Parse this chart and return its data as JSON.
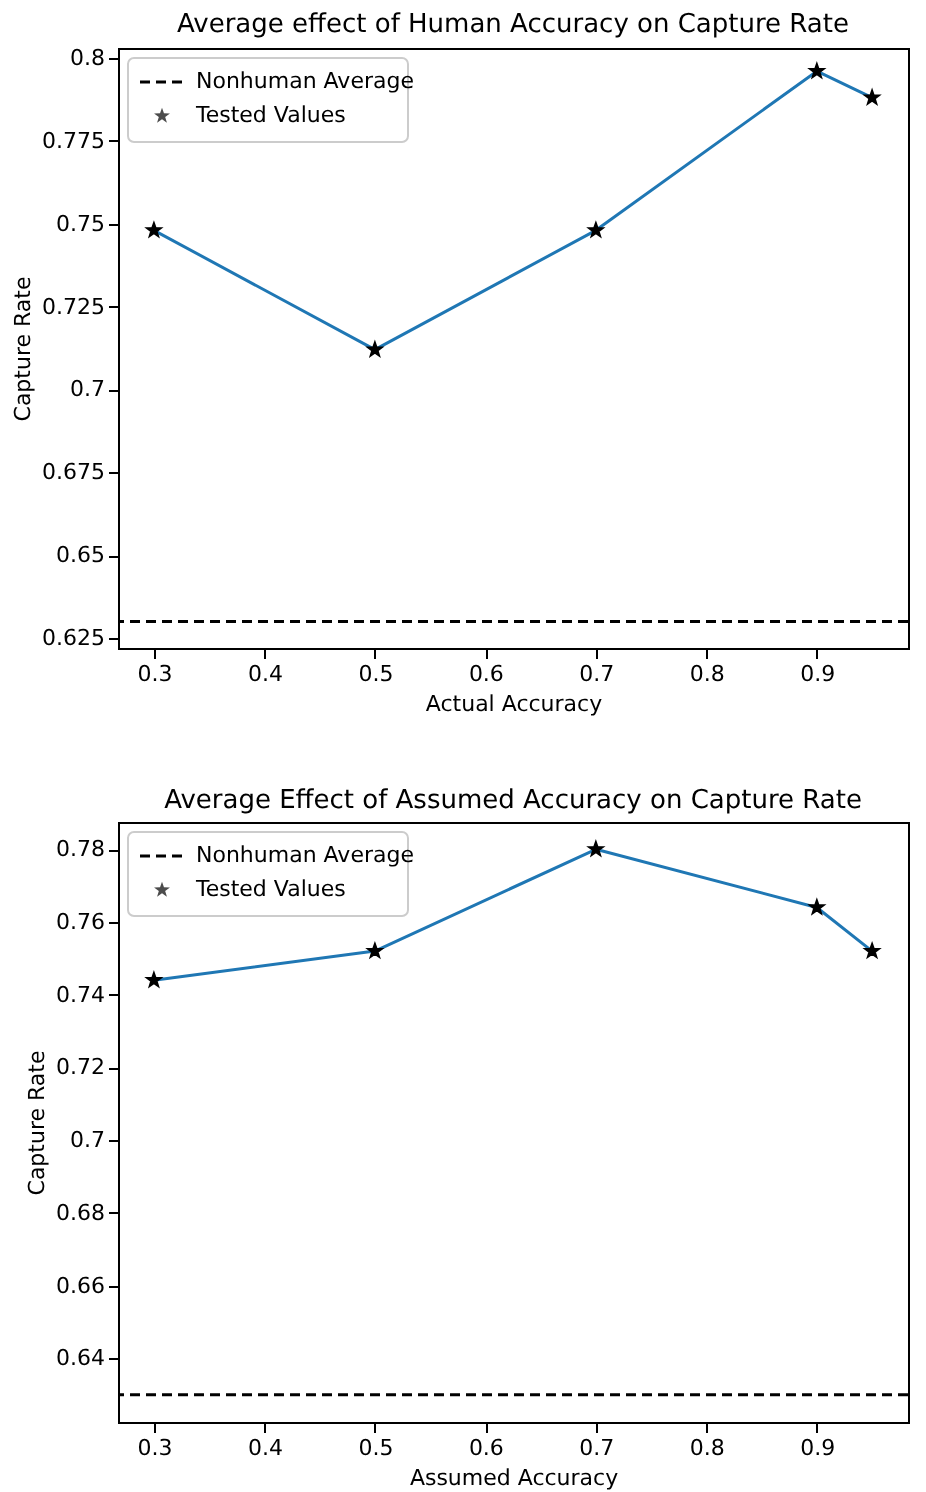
{
  "chart_data": [
    {
      "type": "line",
      "title": "Average effect of Human Accuracy on Capture Rate",
      "xlabel": "Actual Accuracy",
      "ylabel": "Capture Rate",
      "x": [
        0.3,
        0.5,
        0.7,
        0.9,
        0.95
      ],
      "series": [
        {
          "name": "Tested Values",
          "color": "#1f77b4",
          "values": [
            0.748,
            0.712,
            0.748,
            0.796,
            0.788
          ]
        }
      ],
      "marker": "star",
      "xlim": [
        0.2675,
        0.9825
      ],
      "xticks": [
        0.3,
        0.4,
        0.5,
        0.6,
        0.7,
        0.8,
        0.9
      ],
      "ylim": [
        0.622,
        0.803
      ],
      "yticks": [
        0.625,
        0.65,
        0.675,
        0.7,
        0.725,
        0.75,
        0.775,
        0.8
      ],
      "ref_lines": [
        {
          "axis": "y",
          "value": 0.63,
          "label": "Nonhuman Average",
          "color": "#000000",
          "line_style": "dashed"
        }
      ],
      "legend": "top left",
      "grid": false
    },
    {
      "type": "line",
      "title": "Average Effect of Assumed Accuracy on Capture Rate",
      "xlabel": "Assumed Accuracy",
      "ylabel": "Capture Rate",
      "x": [
        0.3,
        0.5,
        0.7,
        0.9,
        0.95
      ],
      "series": [
        {
          "name": "Tested Values",
          "color": "#1f77b4",
          "values": [
            0.744,
            0.752,
            0.78,
            0.764,
            0.752
          ]
        }
      ],
      "marker": "star",
      "xlim": [
        0.2675,
        0.9825
      ],
      "xticks": [
        0.3,
        0.4,
        0.5,
        0.6,
        0.7,
        0.8,
        0.9
      ],
      "ylim": [
        0.6225,
        0.7875
      ],
      "yticks": [
        0.64,
        0.66,
        0.68,
        0.7,
        0.72,
        0.74,
        0.76,
        0.78
      ],
      "ref_lines": [
        {
          "axis": "y",
          "value": 0.63,
          "label": "Nonhuman Average",
          "color": "#000000",
          "line_style": "dashed"
        }
      ],
      "legend": "top left",
      "grid": false
    }
  ]
}
